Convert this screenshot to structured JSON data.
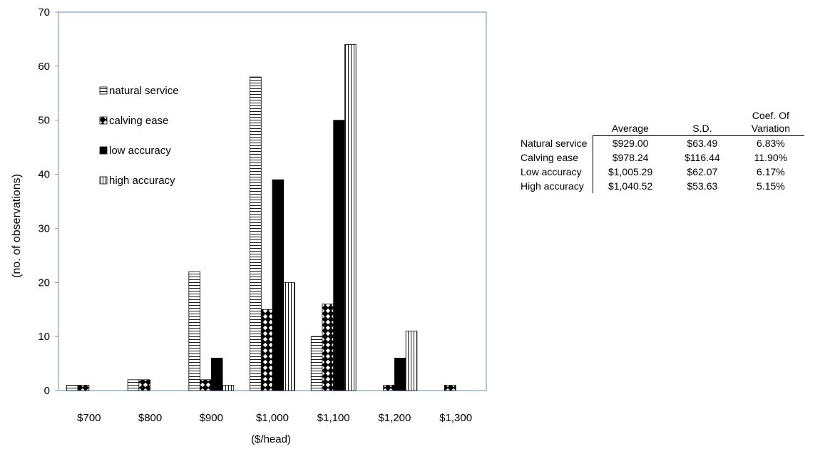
{
  "chart_data": {
    "type": "bar",
    "categories": [
      "$700",
      "$800",
      "$900",
      "$1,000",
      "$1,100",
      "$1,200",
      "$1,300"
    ],
    "series": [
      {
        "name": "natural service",
        "values": [
          1,
          2,
          22,
          58,
          10,
          0,
          0
        ],
        "pattern": "horizontal-lines"
      },
      {
        "name": "calving ease",
        "values": [
          1,
          2,
          2,
          15,
          16,
          1,
          1
        ],
        "pattern": "diamond-checker"
      },
      {
        "name": "low accuracy",
        "values": [
          0,
          0,
          6,
          39,
          50,
          6,
          0
        ],
        "pattern": "solid-black"
      },
      {
        "name": "high accuracy",
        "values": [
          0,
          0,
          1,
          20,
          64,
          11,
          0
        ],
        "pattern": "vertical-lines"
      }
    ],
    "ylim": [
      0,
      70
    ],
    "yticks": [
      0,
      10,
      20,
      30,
      40,
      50,
      60,
      70
    ],
    "xlabel": "($/head)",
    "ylabel": "(no. of observations)",
    "legend_position": "upper-left inside plot",
    "grid": false
  },
  "stats_table": {
    "headers": [
      "Average",
      "S.D.",
      "Coef. Of Variation"
    ],
    "rows": [
      {
        "label": "Natural service",
        "average": "$929.00",
        "sd": "$63.49",
        "cv": "6.83%"
      },
      {
        "label": "Calving ease",
        "average": "$978.24",
        "sd": "$116.44",
        "cv": "11.90%"
      },
      {
        "label": "Low accuracy",
        "average": "$1,005.29",
        "sd": "$62.07",
        "cv": "6.17%"
      },
      {
        "label": "High accuracy",
        "average": "$1,040.52",
        "sd": "$53.63",
        "cv": "5.15%"
      }
    ]
  },
  "colors": {
    "axis": "#7f9cbf",
    "bar_outline": "#000000",
    "pattern": "#000000",
    "background": "#ffffff"
  }
}
